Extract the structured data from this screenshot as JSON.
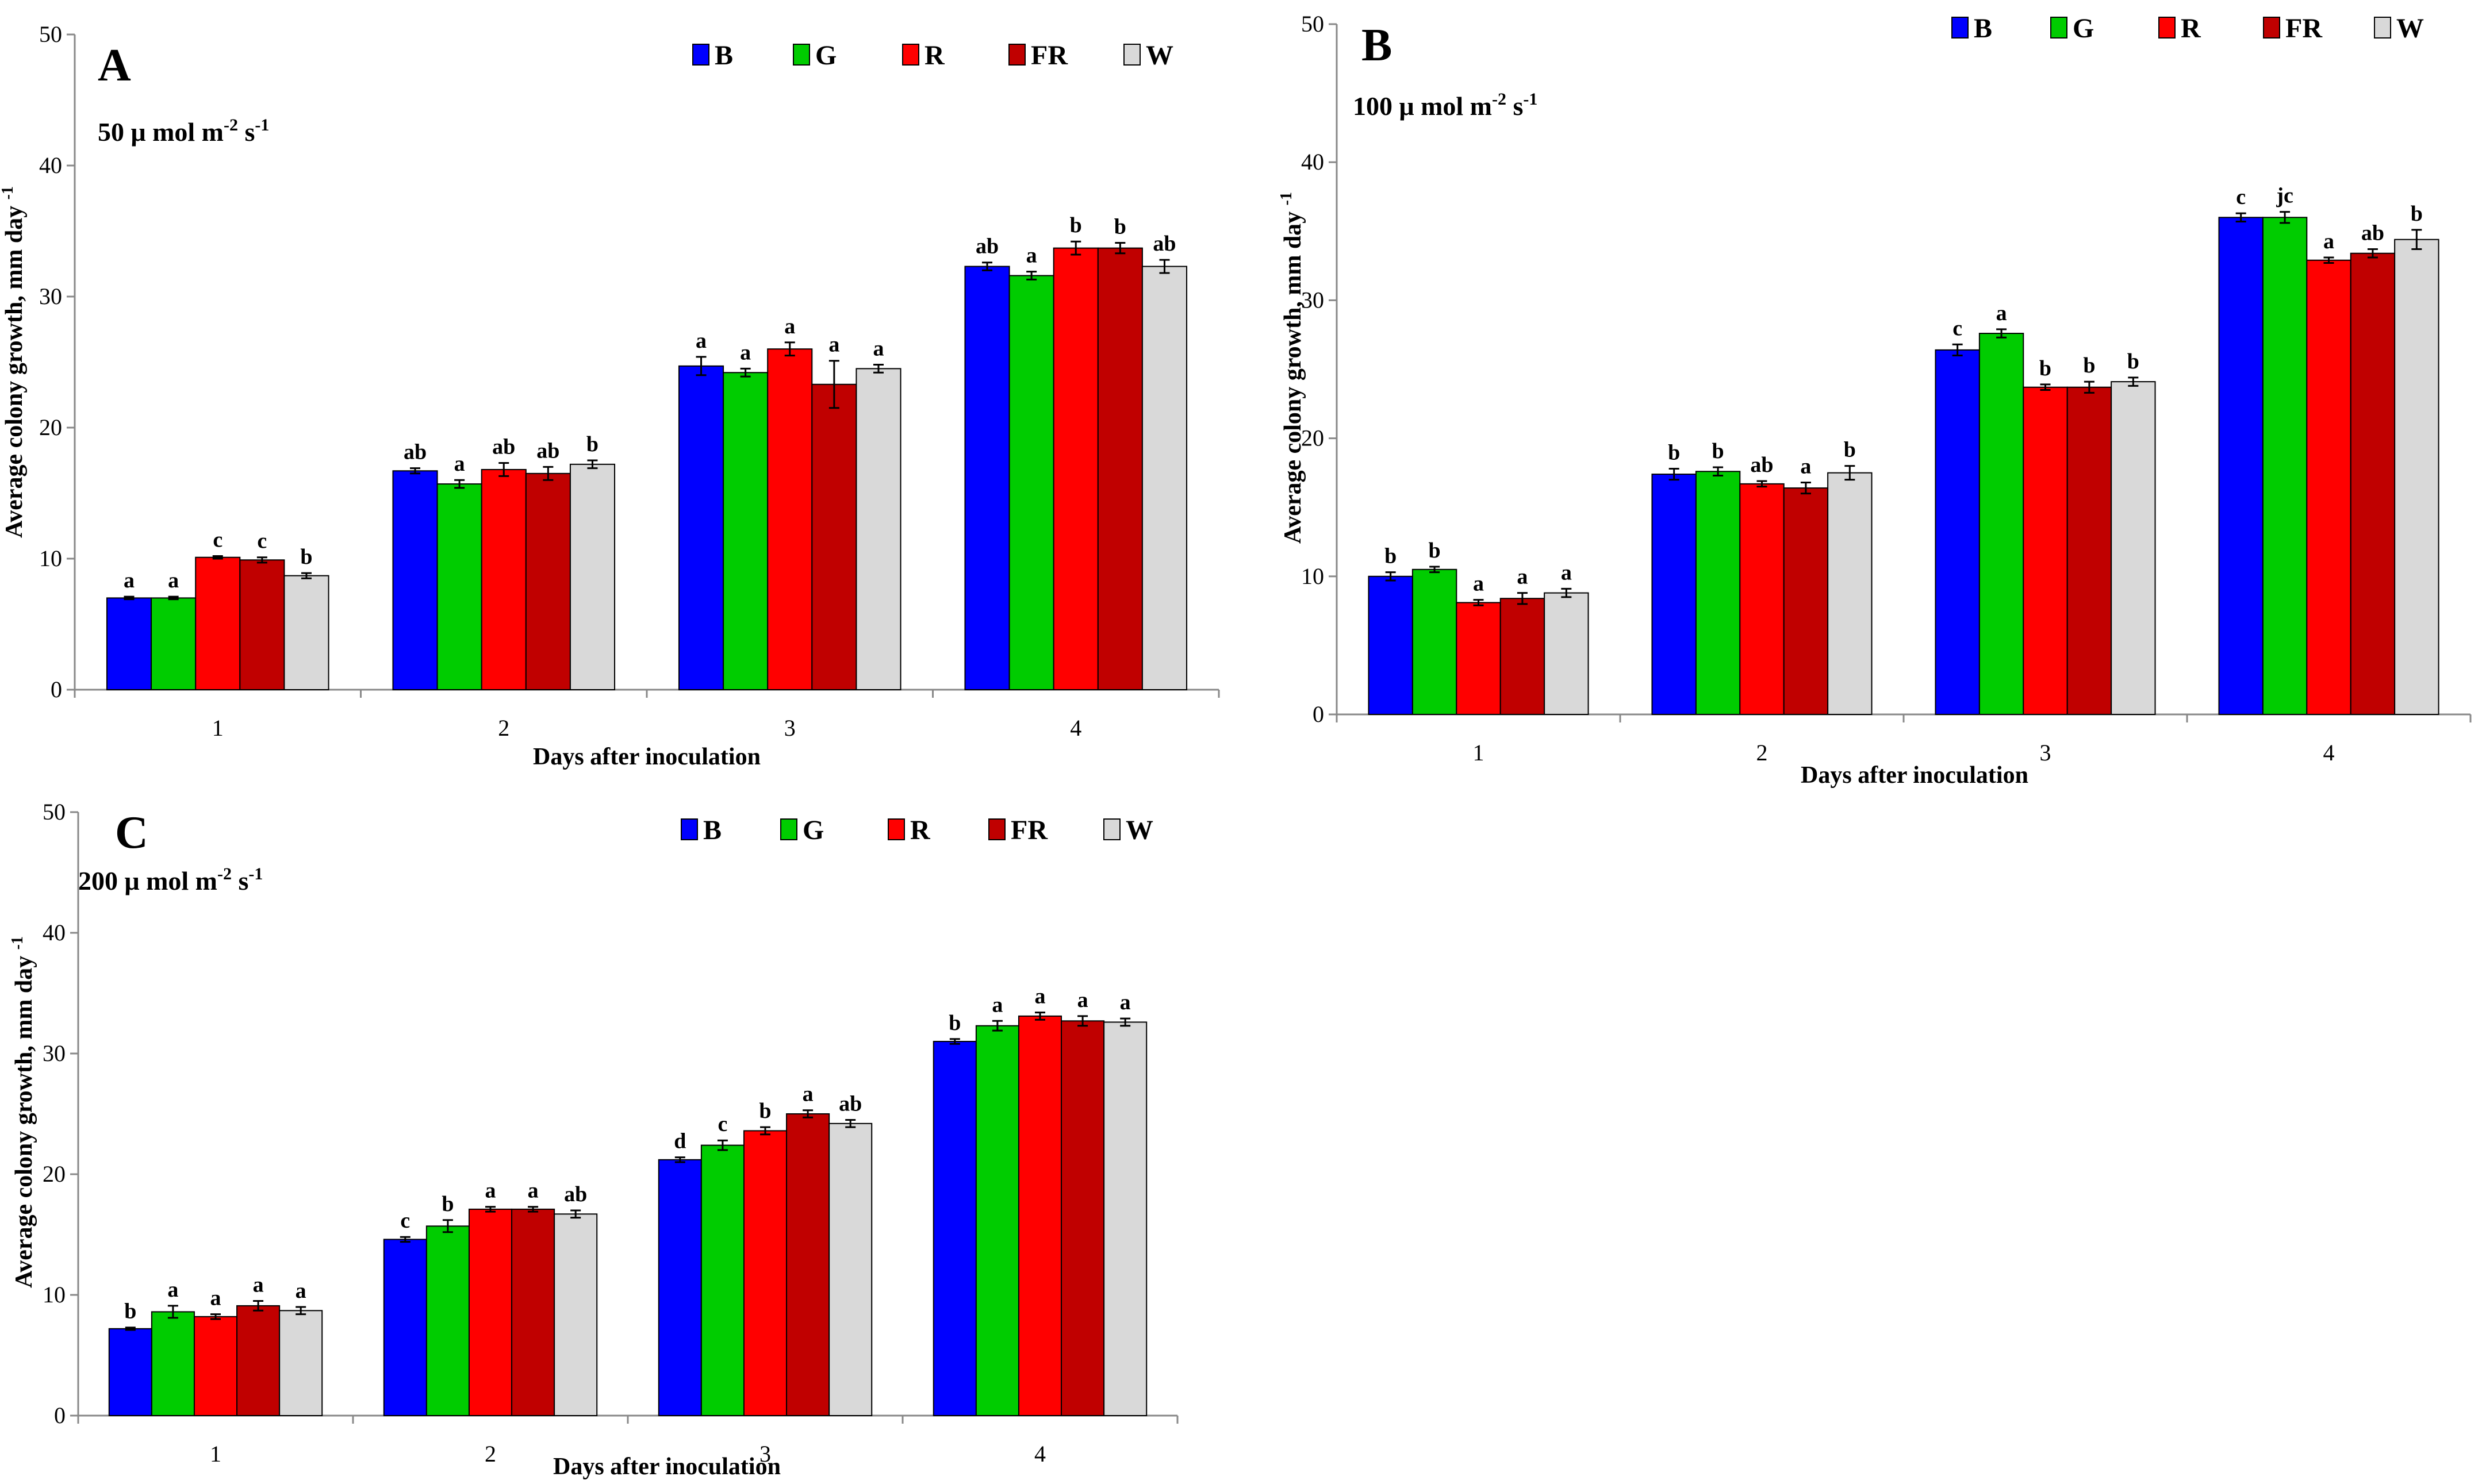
{
  "chart_data": [
    {
      "type": "bar",
      "panel": "A",
      "subtitle": "50 μ mol m",
      "subtitle_sup1": "-2",
      "subtitle_mid": " s",
      "subtitle_sup2": "-1",
      "xlabel": "Days after inoculation",
      "ylabel": "Average colony growth, mm day",
      "ylabel_sup": "-1",
      "ylim": [
        0,
        50
      ],
      "yticks": [
        0,
        10,
        20,
        30,
        40,
        50
      ],
      "categories": [
        "1",
        "2",
        "3",
        "4"
      ],
      "series": [
        {
          "name": "B",
          "color": "#0000ff",
          "values": [
            7.0,
            16.7,
            24.7,
            32.3
          ],
          "errors": [
            0.1,
            0.2,
            0.7,
            0.3
          ],
          "letters": [
            "a",
            "ab",
            "a",
            "ab"
          ]
        },
        {
          "name": "G",
          "color": "#00cc00",
          "values": [
            7.0,
            15.7,
            24.2,
            31.6
          ],
          "errors": [
            0.1,
            0.3,
            0.3,
            0.3
          ],
          "letters": [
            "a",
            "a",
            "a",
            "a"
          ]
        },
        {
          "name": "R",
          "color": "#ff0000",
          "values": [
            10.1,
            16.8,
            26.0,
            33.7
          ],
          "errors": [
            0.1,
            0.5,
            0.5,
            0.5
          ],
          "letters": [
            "c",
            "ab",
            "a",
            "b"
          ]
        },
        {
          "name": "FR",
          "color": "#c00000",
          "values": [
            9.9,
            16.5,
            23.3,
            33.7
          ],
          "errors": [
            0.2,
            0.5,
            1.8,
            0.4
          ],
          "letters": [
            "c",
            "ab",
            "a",
            "b"
          ]
        },
        {
          "name": "W",
          "color": "#d9d9d9",
          "values": [
            8.7,
            17.2,
            24.5,
            32.3
          ],
          "errors": [
            0.2,
            0.3,
            0.3,
            0.5
          ],
          "letters": [
            "b",
            "b",
            "a",
            "ab"
          ]
        }
      ]
    },
    {
      "type": "bar",
      "panel": "B",
      "subtitle": "100 μ mol m",
      "subtitle_sup1": "-2",
      "subtitle_mid": " s",
      "subtitle_sup2": "-1",
      "xlabel": "Days after inoculation",
      "ylabel": "Average colony growth, mm day",
      "ylabel_sup": "-1",
      "ylim": [
        0,
        50
      ],
      "yticks": [
        0,
        10,
        20,
        30,
        40,
        50
      ],
      "categories": [
        "1",
        "2",
        "3",
        "4"
      ],
      "series": [
        {
          "name": "B",
          "color": "#0000ff",
          "values": [
            10.0,
            17.4,
            26.4,
            36.0
          ],
          "errors": [
            0.3,
            0.4,
            0.4,
            0.3
          ],
          "letters": [
            "b",
            "b",
            "c",
            "c"
          ]
        },
        {
          "name": "G",
          "color": "#00cc00",
          "values": [
            10.5,
            17.6,
            27.6,
            36.0
          ],
          "errors": [
            0.2,
            0.3,
            0.3,
            0.4
          ],
          "letters": [
            "b",
            "b",
            "a",
            "jc"
          ]
        },
        {
          "name": "R",
          "color": "#ff0000",
          "values": [
            8.1,
            16.7,
            23.7,
            32.9
          ],
          "errors": [
            0.2,
            0.2,
            0.2,
            0.2
          ],
          "letters": [
            "a",
            "ab",
            "b",
            "a"
          ]
        },
        {
          "name": "FR",
          "color": "#c00000",
          "values": [
            8.4,
            16.4,
            23.7,
            33.4
          ],
          "errors": [
            0.4,
            0.4,
            0.4,
            0.3
          ],
          "letters": [
            "a",
            "a",
            "b",
            "ab"
          ]
        },
        {
          "name": "W",
          "color": "#d9d9d9",
          "values": [
            8.8,
            17.5,
            24.1,
            34.4
          ],
          "errors": [
            0.3,
            0.5,
            0.3,
            0.7
          ],
          "letters": [
            "a",
            "b",
            "b",
            "b"
          ]
        }
      ]
    },
    {
      "type": "bar",
      "panel": "C",
      "subtitle": "200 μ mol m",
      "subtitle_sup1": "-2",
      "subtitle_mid": " s",
      "subtitle_sup2": "-1",
      "xlabel": "Days after inoculation",
      "ylabel": "Average colony growth, mm day",
      "ylabel_sup": "-1",
      "ylim": [
        0,
        50
      ],
      "yticks": [
        0,
        10,
        20,
        30,
        40,
        50
      ],
      "categories": [
        "1",
        "2",
        "3",
        "4"
      ],
      "series": [
        {
          "name": "B",
          "color": "#0000ff",
          "values": [
            7.2,
            14.6,
            21.2,
            31.0
          ],
          "errors": [
            0.1,
            0.2,
            0.2,
            0.2
          ],
          "letters": [
            "b",
            "c",
            "d",
            "b"
          ]
        },
        {
          "name": "G",
          "color": "#00cc00",
          "values": [
            8.6,
            15.7,
            22.4,
            32.3
          ],
          "errors": [
            0.5,
            0.5,
            0.4,
            0.4
          ],
          "letters": [
            "a",
            "b",
            "c",
            "a"
          ]
        },
        {
          "name": "R",
          "color": "#ff0000",
          "values": [
            8.2,
            17.1,
            23.6,
            33.1
          ],
          "errors": [
            0.2,
            0.2,
            0.3,
            0.3
          ],
          "letters": [
            "a",
            "a",
            "b",
            "a"
          ]
        },
        {
          "name": "FR",
          "color": "#c00000",
          "values": [
            9.1,
            17.1,
            25.0,
            32.7
          ],
          "errors": [
            0.4,
            0.2,
            0.3,
            0.4
          ],
          "letters": [
            "a",
            "a",
            "a",
            "a"
          ]
        },
        {
          "name": "W",
          "color": "#d9d9d9",
          "values": [
            8.7,
            16.7,
            24.2,
            32.6
          ],
          "errors": [
            0.3,
            0.3,
            0.3,
            0.3
          ],
          "letters": [
            "a",
            "ab",
            "ab",
            "a"
          ]
        }
      ]
    }
  ]
}
